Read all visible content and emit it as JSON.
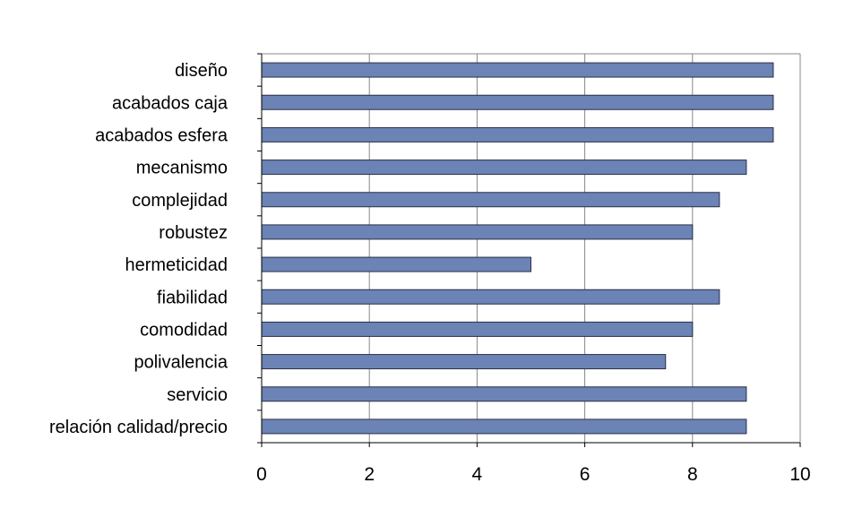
{
  "chart_data": {
    "type": "bar",
    "orientation": "horizontal",
    "title": "",
    "xlabel": "",
    "ylabel": "",
    "categories": [
      "diseño",
      "acabados caja",
      "acabados esfera",
      "mecanismo",
      "complejidad",
      "robustez",
      "hermeticidad",
      "fiabilidad",
      "comodidad",
      "polivalencia",
      "servicio",
      "relación calidad/precio"
    ],
    "values": [
      9.5,
      9.5,
      9.5,
      9,
      8.5,
      8,
      5,
      8.5,
      8,
      7.5,
      9,
      9
    ],
    "xlim": [
      0,
      10
    ],
    "xticks": [
      "0",
      "2",
      "4",
      "6",
      "8",
      "10"
    ],
    "grid": "vertical",
    "legend": "none",
    "colors": {
      "bar_fill": "#6b83b5",
      "bar_stroke": "#2b2f4a",
      "grid": "#888888",
      "axis": "#000000"
    }
  }
}
